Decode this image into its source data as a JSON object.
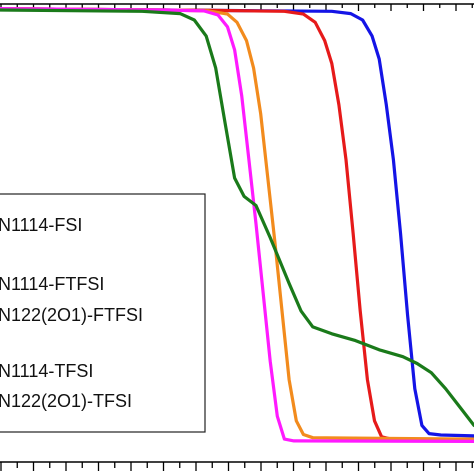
{
  "chart_data": {
    "type": "line",
    "title": "",
    "xlabel": "",
    "ylabel": "",
    "x_range": [
      0,
      100
    ],
    "y_range": [
      0,
      100
    ],
    "legend_position": "left",
    "series": [
      {
        "name": "N1114-FSI",
        "color": "#1414e6",
        "points": [
          [
            0,
            99
          ],
          [
            45,
            98.6
          ],
          [
            70,
            98.4
          ],
          [
            74,
            97.9
          ],
          [
            76.5,
            96.5
          ],
          [
            78.5,
            93
          ],
          [
            80,
            88
          ],
          [
            81.5,
            78
          ],
          [
            83,
            66
          ],
          [
            84.5,
            50
          ],
          [
            86,
            32
          ],
          [
            87.5,
            16
          ],
          [
            89,
            8
          ],
          [
            90.5,
            6.2
          ],
          [
            93,
            5.9
          ],
          [
            100,
            5.7
          ]
        ]
      },
      {
        "name": "N1114-FTFSI",
        "color": "#e61a1a",
        "points": [
          [
            0,
            99
          ],
          [
            45,
            98.6
          ],
          [
            60,
            98.4
          ],
          [
            64,
            97.8
          ],
          [
            66.5,
            96
          ],
          [
            68.5,
            92
          ],
          [
            70,
            87
          ],
          [
            71.5,
            78
          ],
          [
            73,
            66
          ],
          [
            74.5,
            50
          ],
          [
            76,
            33
          ],
          [
            77.5,
            18
          ],
          [
            79,
            9
          ],
          [
            80.5,
            5.5
          ],
          [
            82.5,
            5
          ],
          [
            100,
            4.8
          ]
        ]
      },
      {
        "name": "N122(2O1)-FTFSI",
        "color": "#f28b1d",
        "points": [
          [
            0,
            99
          ],
          [
            35,
            98.7
          ],
          [
            44,
            98.5
          ],
          [
            48,
            97.8
          ],
          [
            50,
            96
          ],
          [
            52,
            92
          ],
          [
            53.5,
            86
          ],
          [
            55,
            76
          ],
          [
            56.5,
            62
          ],
          [
            58,
            48
          ],
          [
            59.5,
            33
          ],
          [
            61,
            18
          ],
          [
            62.5,
            9
          ],
          [
            64,
            6
          ],
          [
            66,
            5.3
          ],
          [
            100,
            5
          ]
        ]
      },
      {
        "name": "N1114-TFSI",
        "color": "#ff1aff",
        "points": [
          [
            0,
            99
          ],
          [
            35,
            98.7
          ],
          [
            43,
            98.5
          ],
          [
            46,
            97.6
          ],
          [
            48,
            95
          ],
          [
            49.5,
            90
          ],
          [
            51,
            80
          ],
          [
            52.5,
            66
          ],
          [
            54,
            52
          ],
          [
            55.5,
            37
          ],
          [
            57,
            22
          ],
          [
            58.5,
            10
          ],
          [
            60,
            5
          ],
          [
            62,
            4.6
          ],
          [
            100,
            4.5
          ]
        ]
      },
      {
        "name": "N122(2O1)-TFSI",
        "color": "#1a7a1a",
        "points": [
          [
            0,
            98.7
          ],
          [
            30,
            98.4
          ],
          [
            38,
            97.9
          ],
          [
            41,
            96.5
          ],
          [
            43.5,
            93
          ],
          [
            45.5,
            86
          ],
          [
            47.5,
            74
          ],
          [
            49.5,
            62
          ],
          [
            51.5,
            58
          ],
          [
            54,
            56
          ],
          [
            57,
            49
          ],
          [
            61,
            39
          ],
          [
            63.5,
            33
          ],
          [
            66,
            29.5
          ],
          [
            70,
            28
          ],
          [
            75,
            26.5
          ],
          [
            80,
            24.5
          ],
          [
            85,
            23
          ],
          [
            88,
            21.5
          ],
          [
            91,
            19.5
          ],
          [
            94,
            16
          ],
          [
            97,
            12
          ],
          [
            100,
            8
          ]
        ]
      }
    ]
  }
}
